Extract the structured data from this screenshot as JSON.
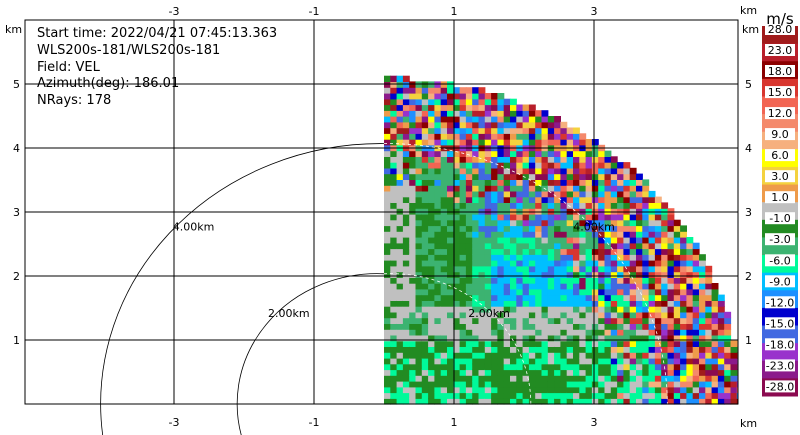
{
  "info": {
    "start_time": "Start time: 2022/04/21 07:45:13.363",
    "instrument": "WLS200s-181/WLS200s-181",
    "field": "Field: VEL",
    "azimuth": "Azimuth(deg): 186.01",
    "nrays": "NRays: 178"
  },
  "colors": {
    "grid": "#000000",
    "frame": "#000000"
  },
  "chart_data": {
    "type": "heatmap",
    "x_ticks": [
      "-3",
      "-1",
      "1",
      "3"
    ],
    "y_ticks": [
      "1",
      "2",
      "3",
      "4",
      "5"
    ],
    "x_unit": "km",
    "y_unit": "km",
    "xlim": [
      -4,
      4
    ],
    "ylim": [
      0,
      5.3
    ],
    "range_rings_km": [
      {
        "label": "2.00km",
        "r": 2.0
      },
      {
        "label": "4.00km",
        "r": 4.0
      }
    ],
    "colorbar": {
      "unit": "m/s",
      "labels": [
        "28.0",
        "23.0",
        "18.0",
        "15.0",
        "12.0",
        "9.0",
        "6.0",
        "3.0",
        "1.0",
        "-1.0",
        "-3.0",
        "-6.0",
        "-9.0",
        "-12.0",
        "-15.0",
        "-18.0",
        "-23.0",
        "-28.0"
      ],
      "colors": [
        "#a01c1c",
        "#b81f2b",
        "#8b0000",
        "#d8362f",
        "#f26553",
        "#f4896b",
        "#f6b07e",
        "#ffff00",
        "#f4d23e",
        "#ee9b4a",
        "#c0c0c0",
        "#228b22",
        "#3cb371",
        "#00fa9a",
        "#00bfff",
        "#1e90ff",
        "#0000cd",
        "#4169e1",
        "#9932cc",
        "#8b1a8b",
        "#8b0a50"
      ]
    },
    "data_sector": {
      "az_start_deg": 0,
      "az_end_deg": 90,
      "max_range_km": 5.1
    }
  }
}
